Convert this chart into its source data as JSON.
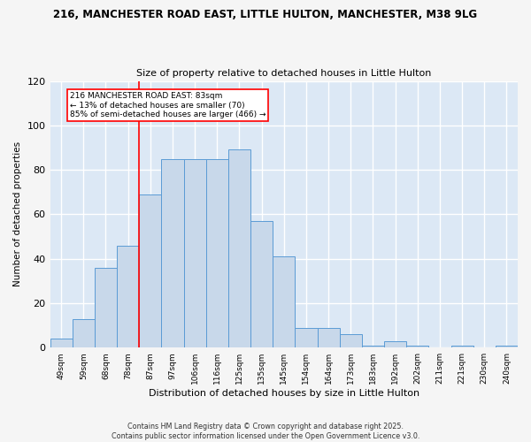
{
  "title_line1": "216, MANCHESTER ROAD EAST, LITTLE HULTON, MANCHESTER, M38 9LG",
  "title_line2": "Size of property relative to detached houses in Little Hulton",
  "xlabel": "Distribution of detached houses by size in Little Hulton",
  "ylabel": "Number of detached properties",
  "bar_color": "#c8d8ea",
  "bar_edge_color": "#5b9bd5",
  "background_color": "#dce8f5",
  "fig_background_color": "#f5f5f5",
  "grid_color": "#ffffff",
  "categories": [
    "49sqm",
    "59sqm",
    "68sqm",
    "78sqm",
    "87sqm",
    "97sqm",
    "106sqm",
    "116sqm",
    "125sqm",
    "135sqm",
    "145sqm",
    "154sqm",
    "164sqm",
    "173sqm",
    "183sqm",
    "192sqm",
    "202sqm",
    "211sqm",
    "221sqm",
    "230sqm",
    "240sqm"
  ],
  "values": [
    4,
    13,
    36,
    46,
    69,
    85,
    85,
    85,
    89,
    57,
    41,
    9,
    9,
    6,
    1,
    3,
    1,
    0,
    1,
    0,
    1
  ],
  "ylim": [
    0,
    120
  ],
  "yticks": [
    0,
    20,
    40,
    60,
    80,
    100,
    120
  ],
  "property_line_x": 3.5,
  "annotation_text_line1": "216 MANCHESTER ROAD EAST: 83sqm",
  "annotation_text_line2": "← 13% of detached houses are smaller (70)",
  "annotation_text_line3": "85% of semi-detached houses are larger (466) →",
  "footer_line1": "Contains HM Land Registry data © Crown copyright and database right 2025.",
  "footer_line2": "Contains public sector information licensed under the Open Government Licence v3.0."
}
